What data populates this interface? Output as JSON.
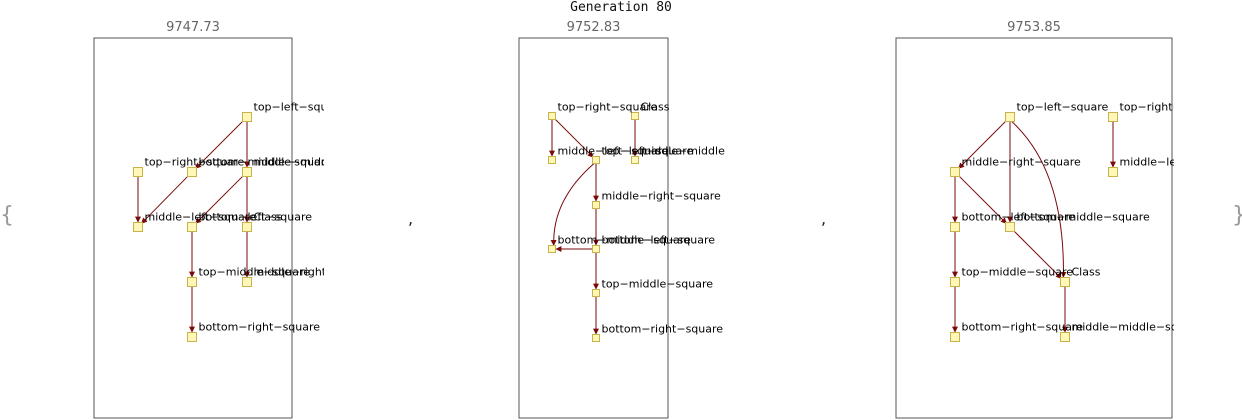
{
  "title": "Generation 80",
  "brace_open": "{",
  "brace_close": "}",
  "separator": ",",
  "colors": {
    "edge": "#7a0a0a",
    "node_fill": "#fff7b8",
    "node_stroke": "#c9b24a",
    "frame": "#555555"
  },
  "panels": [
    {
      "score": "9747.73",
      "nodes": [
        {
          "id": "a1",
          "label": "top−left−square"
        },
        {
          "id": "a2",
          "label": "top−right−square"
        },
        {
          "id": "a3",
          "label": "bottom−middle−square"
        },
        {
          "id": "a4",
          "label": "middle−middle−square"
        },
        {
          "id": "a5",
          "label": "middle−left−square"
        },
        {
          "id": "a6",
          "label": "bottom−left−square"
        },
        {
          "id": "a7",
          "label": "Class"
        },
        {
          "id": "a8",
          "label": "top−middle−square"
        },
        {
          "id": "a9",
          "label": "middle−right−square"
        },
        {
          "id": "a10",
          "label": "bottom−right−square"
        }
      ],
      "edges": [
        [
          "a1",
          "a3"
        ],
        [
          "a1",
          "a4"
        ],
        [
          "a2",
          "a5"
        ],
        [
          "a3",
          "a5"
        ],
        [
          "a4",
          "a6"
        ],
        [
          "a4",
          "a7"
        ],
        [
          "a6",
          "a8"
        ],
        [
          "a7",
          "a9"
        ],
        [
          "a8",
          "a10"
        ]
      ]
    },
    {
      "score": "9752.83",
      "nodes": [
        {
          "id": "b1",
          "label": "top−right−square"
        },
        {
          "id": "b2",
          "label": "Class"
        },
        {
          "id": "b3",
          "label": "middle−left−square"
        },
        {
          "id": "b4",
          "label": "top−left−square"
        },
        {
          "id": "b5",
          "label": "middle−middle−square"
        },
        {
          "id": "b6",
          "label": "middle−right−square"
        },
        {
          "id": "b7",
          "label": "bottom−middle−square"
        },
        {
          "id": "b8",
          "label": "bottom−left−square"
        },
        {
          "id": "b9",
          "label": "top−middle−square"
        },
        {
          "id": "b10",
          "label": "bottom−right−square"
        }
      ],
      "edges": [
        [
          "b1",
          "b3"
        ],
        [
          "b1",
          "b4"
        ],
        [
          "b2",
          "b5"
        ],
        [
          "b4",
          "b6"
        ],
        [
          "b4",
          "b7"
        ],
        [
          "b6",
          "b8"
        ],
        [
          "b8",
          "b7"
        ],
        [
          "b8",
          "b9"
        ],
        [
          "b9",
          "b10"
        ]
      ]
    },
    {
      "score": "9753.85",
      "nodes": [
        {
          "id": "c1",
          "label": "top−left−square"
        },
        {
          "id": "c2",
          "label": "top−right−square"
        },
        {
          "id": "c3",
          "label": "middle−right−square"
        },
        {
          "id": "c4",
          "label": "middle−left−square"
        },
        {
          "id": "c5",
          "label": "bottom−left−square"
        },
        {
          "id": "c6",
          "label": "bottom−middle−square"
        },
        {
          "id": "c7",
          "label": "top−middle−square"
        },
        {
          "id": "c8",
          "label": "Class"
        },
        {
          "id": "c9",
          "label": "bottom−right−square"
        },
        {
          "id": "c10",
          "label": "middle−middle−square"
        }
      ],
      "edges": [
        [
          "c1",
          "c3"
        ],
        [
          "c1",
          "c6"
        ],
        [
          "c1",
          "c8"
        ],
        [
          "c2",
          "c4"
        ],
        [
          "c3",
          "c5"
        ],
        [
          "c3",
          "c6"
        ],
        [
          "c6",
          "c8"
        ],
        [
          "c5",
          "c7"
        ],
        [
          "c7",
          "c9"
        ],
        [
          "c8",
          "c10"
        ]
      ]
    }
  ]
}
